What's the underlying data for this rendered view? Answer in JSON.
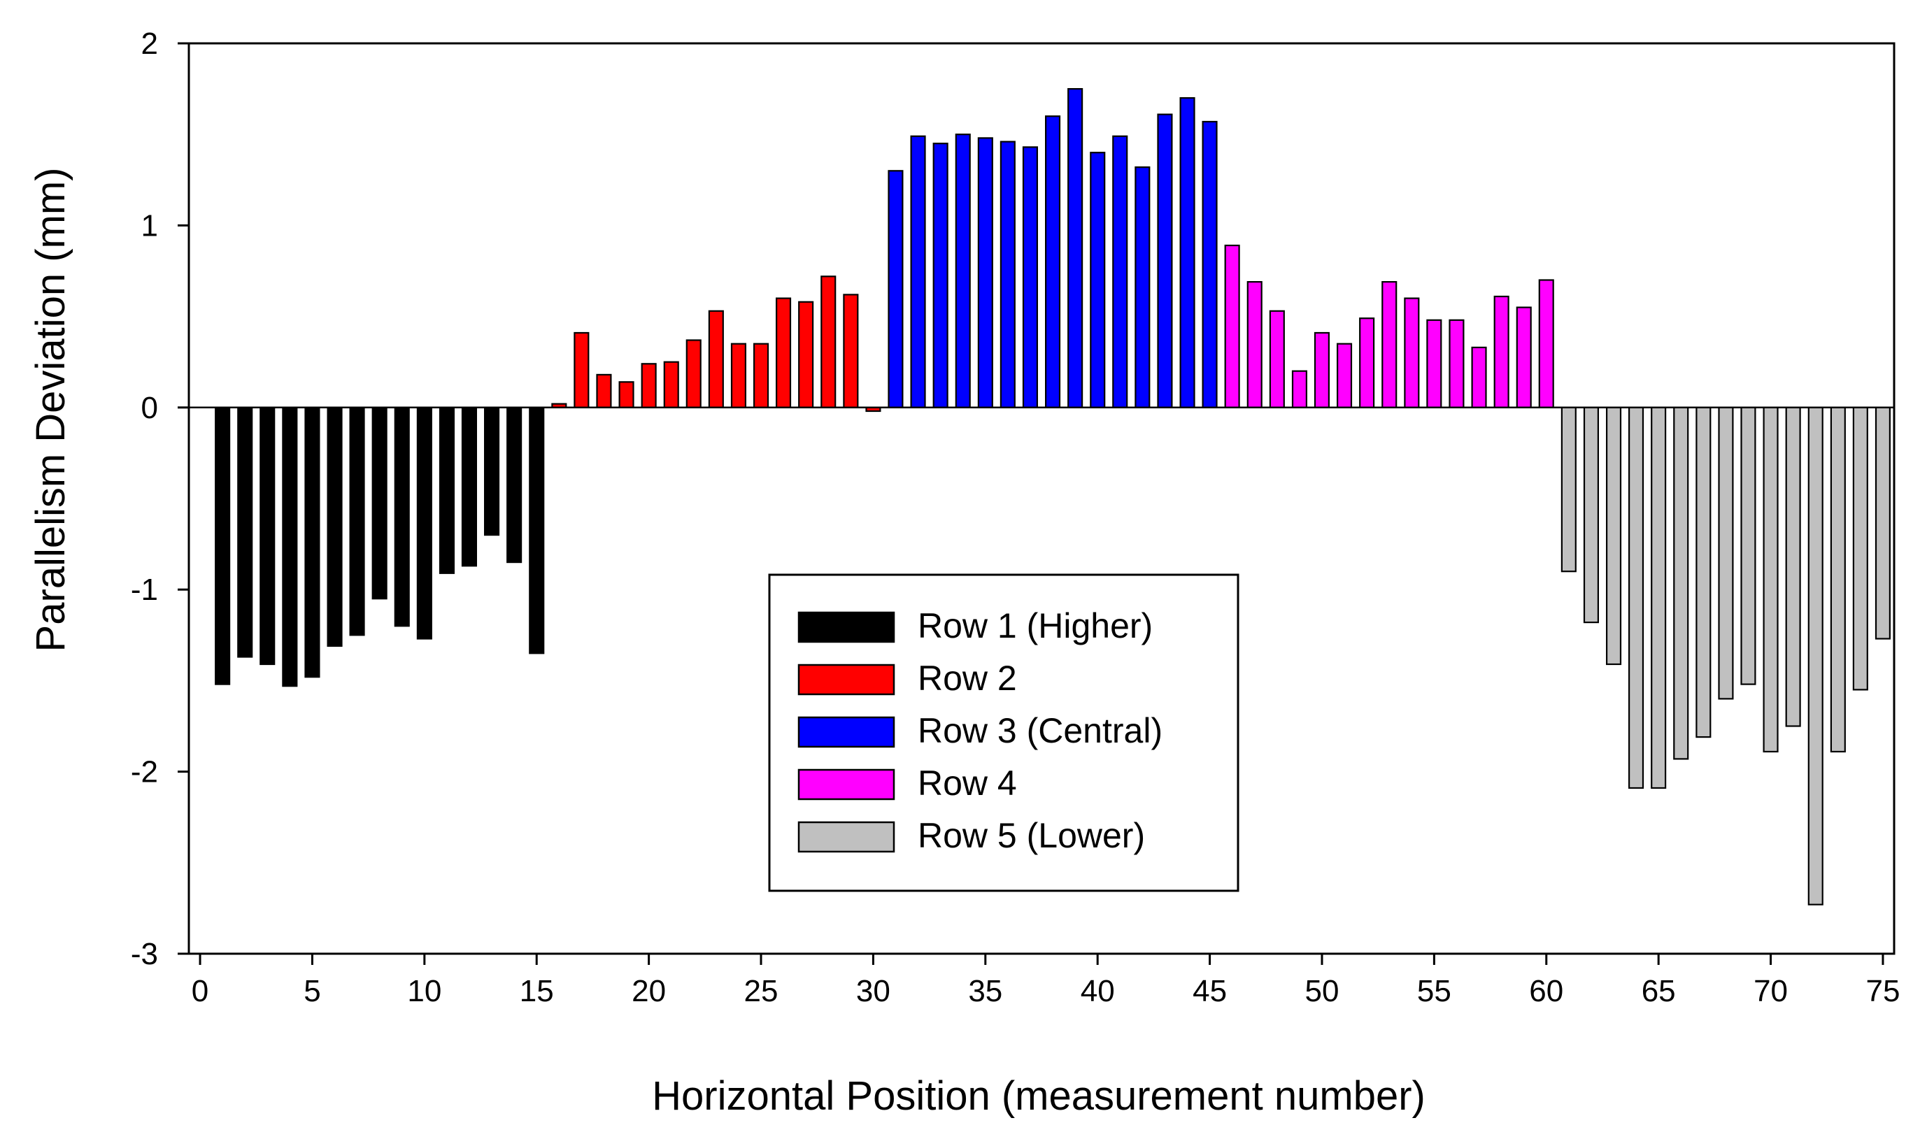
{
  "chart_data": {
    "type": "bar",
    "title": "",
    "xlabel": "Horizontal Position (measurement number)",
    "ylabel": "Parallelism Deviation (mm)",
    "xlim": [
      -0.5,
      75.5
    ],
    "ylim": [
      -3,
      2
    ],
    "xticks": [
      0,
      5,
      10,
      15,
      20,
      25,
      30,
      35,
      40,
      45,
      50,
      55,
      60,
      65,
      70,
      75
    ],
    "yticks": [
      -3,
      -2,
      -1,
      0,
      1,
      2
    ],
    "xtick_labels": [
      "0",
      "5",
      "10",
      "15",
      "20",
      "25",
      "30",
      "35",
      "40",
      "45",
      "50",
      "55",
      "60",
      "65",
      "70",
      "75"
    ],
    "ytick_labels": [
      "-3",
      "-2",
      "-1",
      "0",
      "1",
      "2"
    ],
    "legend_position": "bottom-center",
    "series": [
      {
        "name": "Row 1 (Higher)",
        "color": "#000000",
        "x": [
          1,
          2,
          3,
          4,
          5,
          6,
          7,
          8,
          9,
          10,
          11,
          12,
          13,
          14,
          15
        ],
        "values": [
          -1.52,
          -1.37,
          -1.41,
          -1.53,
          -1.48,
          -1.31,
          -1.25,
          -1.05,
          -1.2,
          -1.27,
          -0.91,
          -0.87,
          -0.7,
          -0.85,
          -1.35
        ]
      },
      {
        "name": "Row 2",
        "color": "#ff0000",
        "x": [
          16,
          17,
          18,
          19,
          20,
          21,
          22,
          23,
          24,
          25,
          26,
          27,
          28,
          29,
          30
        ],
        "values": [
          0.02,
          0.41,
          0.18,
          0.14,
          0.24,
          0.25,
          0.37,
          0.53,
          0.35,
          0.35,
          0.6,
          0.58,
          0.72,
          0.62,
          -0.02
        ]
      },
      {
        "name": "Row 3 (Central)",
        "color": "#0000ff",
        "x": [
          31,
          32,
          33,
          34,
          35,
          36,
          37,
          38,
          39,
          40,
          41,
          42,
          43,
          44,
          45
        ],
        "values": [
          1.3,
          1.49,
          1.45,
          1.5,
          1.48,
          1.46,
          1.43,
          1.6,
          1.75,
          1.4,
          1.49,
          1.32,
          1.61,
          1.7,
          1.57
        ]
      },
      {
        "name": "Row 4",
        "color": "#ff00ff",
        "x": [
          46,
          47,
          48,
          49,
          50,
          51,
          52,
          53,
          54,
          55,
          56,
          57,
          58,
          59,
          60
        ],
        "values": [
          0.89,
          0.69,
          0.53,
          0.2,
          0.41,
          0.35,
          0.49,
          0.69,
          0.6,
          0.48,
          0.48,
          0.33,
          0.61,
          0.55,
          0.7
        ]
      },
      {
        "name": "Row 5 (Lower)",
        "color": "#c0c0c0",
        "x": [
          61,
          62,
          63,
          64,
          65,
          66,
          67,
          68,
          69,
          70,
          71,
          72,
          73,
          74,
          75
        ],
        "values": [
          -0.9,
          -1.18,
          -1.41,
          -2.09,
          -2.09,
          -1.93,
          -1.81,
          -1.6,
          -1.52,
          -1.89,
          -1.75,
          -2.73,
          -1.89,
          -1.55,
          -1.27
        ]
      }
    ]
  }
}
